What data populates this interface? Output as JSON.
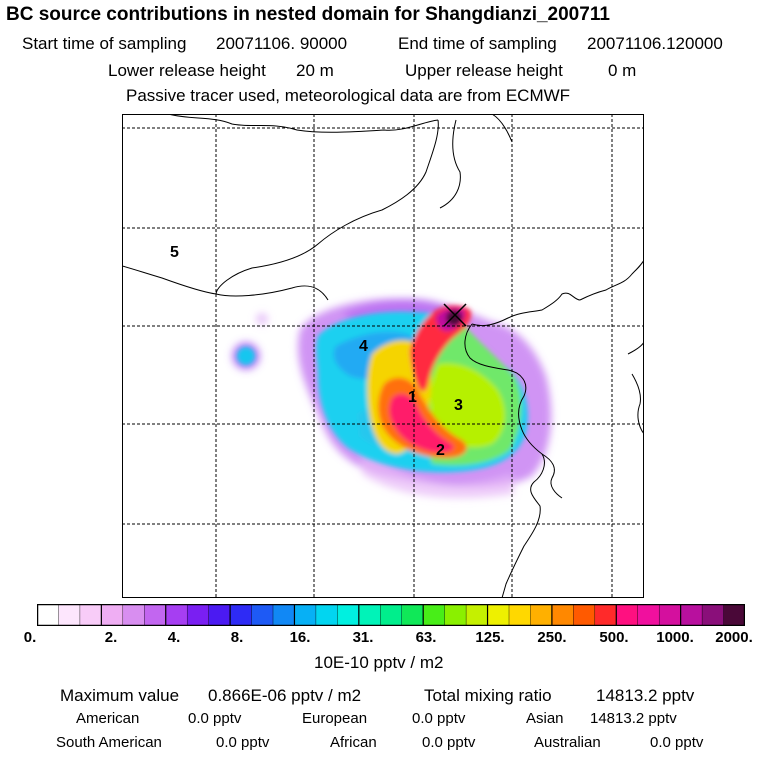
{
  "header": {
    "title": "BC  source contributions in nested domain for Shangdianzi_200711",
    "start_label": "Start time of sampling",
    "start_value": "20071106. 90000",
    "end_label": "End time of sampling",
    "end_value": "20071106.120000",
    "lower_label": "Lower release height",
    "lower_value": "20 m",
    "upper_label": "Upper release height",
    "upper_value": "0 m",
    "tracer_note": "Passive tracer used, meteorological data are from ECMWF"
  },
  "map": {
    "region_labels": [
      "1",
      "2",
      "3",
      "4",
      "5"
    ],
    "receptor_marker": "x-marker-icon"
  },
  "colorbar": {
    "colors": [
      "#ffffff",
      "#fde6fd",
      "#f8ccf8",
      "#efaef3",
      "#d88ef0",
      "#c266f0",
      "#a63ef2",
      "#7a1ff2",
      "#4b1af2",
      "#2e2bf5",
      "#1e5af5",
      "#1188f5",
      "#07b0f5",
      "#02d5f0",
      "#00f0e0",
      "#00f3b8",
      "#00ee8c",
      "#10e858",
      "#48ee18",
      "#8af000",
      "#c5f000",
      "#eef000",
      "#ffd800",
      "#ffb000",
      "#ff8800",
      "#ff5a00",
      "#ff2a2a",
      "#ff1080",
      "#f0109e",
      "#d4109e",
      "#b8109e",
      "#8a0f7a",
      "#4a0838"
    ],
    "tick_labels": [
      "0.",
      "2.",
      "4.",
      "8.",
      "16.",
      "31.",
      "63.",
      "125.",
      "250.",
      "500.",
      "1000.",
      "2000."
    ],
    "unit_label": "10E-10 pptv / m2"
  },
  "stats": {
    "max_label": "Maximum value",
    "max_value": "0.866E-06 pptv / m2",
    "total_label": "Total mixing ratio",
    "total_value": "14813.2 pptv",
    "regions": [
      {
        "name": "American",
        "value": "0.0 pptv"
      },
      {
        "name": "European",
        "value": "0.0 pptv"
      },
      {
        "name": "Asian",
        "value": "14813.2 pptv"
      },
      {
        "name": "South American",
        "value": "0.0 pptv"
      },
      {
        "name": "African",
        "value": "0.0 pptv"
      },
      {
        "name": "Australian",
        "value": "0.0 pptv"
      }
    ]
  }
}
